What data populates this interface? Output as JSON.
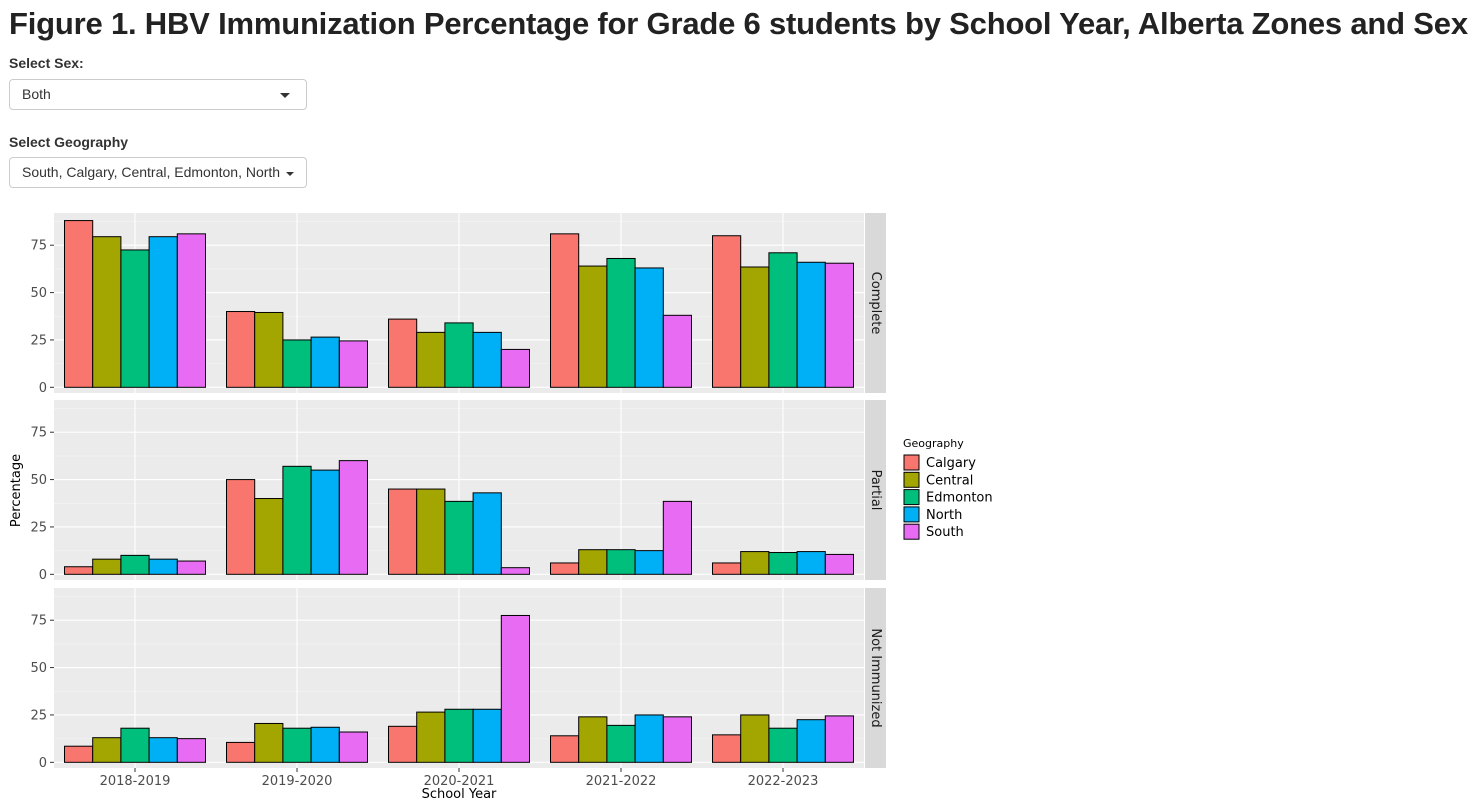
{
  "page": {
    "title": "Figure 1. HBV Immunization Percentage for Grade 6 students by School Year, Alberta Zones and Sex"
  },
  "controls": {
    "sex": {
      "label": "Select Sex:",
      "value": "Both"
    },
    "geography": {
      "label": "Select Geography",
      "value": "South, Calgary, Central, Edmonton, North"
    }
  },
  "chart_data": {
    "type": "bar",
    "xlabel": "School Year",
    "ylabel": "Percentage",
    "ylim": [
      -3,
      92
    ],
    "yticks": [
      0,
      25,
      50,
      75
    ],
    "grid": true,
    "legend_position": "right",
    "legend_title": "Geography",
    "categories": [
      "2018-2019",
      "2019-2020",
      "2020-2021",
      "2021-2022",
      "2022-2023"
    ],
    "series_colors": {
      "Calgary": "#F8766D",
      "Central": "#A3A500",
      "Edmonton": "#00BF7D",
      "North": "#00B0F6",
      "South": "#E76BF3"
    },
    "facets": [
      {
        "name": "Complete",
        "series": [
          {
            "name": "Calgary",
            "values": [
              88,
              40,
              36,
              81,
              80
            ]
          },
          {
            "name": "Central",
            "values": [
              79.5,
              39.5,
              29,
              64,
              63.5
            ]
          },
          {
            "name": "Edmonton",
            "values": [
              72.5,
              25,
              34,
              68,
              71
            ]
          },
          {
            "name": "North",
            "values": [
              79.5,
              26.5,
              29,
              63,
              66
            ]
          },
          {
            "name": "South",
            "values": [
              81,
              24.5,
              20,
              38,
              65.5
            ]
          }
        ]
      },
      {
        "name": "Partial",
        "series": [
          {
            "name": "Calgary",
            "values": [
              4,
              50,
              45,
              6,
              6
            ]
          },
          {
            "name": "Central",
            "values": [
              8,
              40,
              45,
              13,
              12
            ]
          },
          {
            "name": "Edmonton",
            "values": [
              10,
              57,
              38.5,
              13,
              11.5
            ]
          },
          {
            "name": "North",
            "values": [
              8,
              55,
              43,
              12.5,
              12
            ]
          },
          {
            "name": "South",
            "values": [
              7,
              60,
              3.5,
              38.5,
              10.5
            ]
          }
        ]
      },
      {
        "name": "Not Immunized",
        "series": [
          {
            "name": "Calgary",
            "values": [
              8.5,
              10.5,
              19,
              14,
              14.5
            ]
          },
          {
            "name": "Central",
            "values": [
              13,
              20.5,
              26.5,
              24,
              25
            ]
          },
          {
            "name": "Edmonton",
            "values": [
              18,
              18,
              28,
              19.5,
              18
            ]
          },
          {
            "name": "North",
            "values": [
              13,
              18.5,
              28,
              25,
              22.5
            ]
          },
          {
            "name": "South",
            "values": [
              12.5,
              16,
              77.5,
              24,
              24.5
            ]
          }
        ]
      }
    ]
  }
}
